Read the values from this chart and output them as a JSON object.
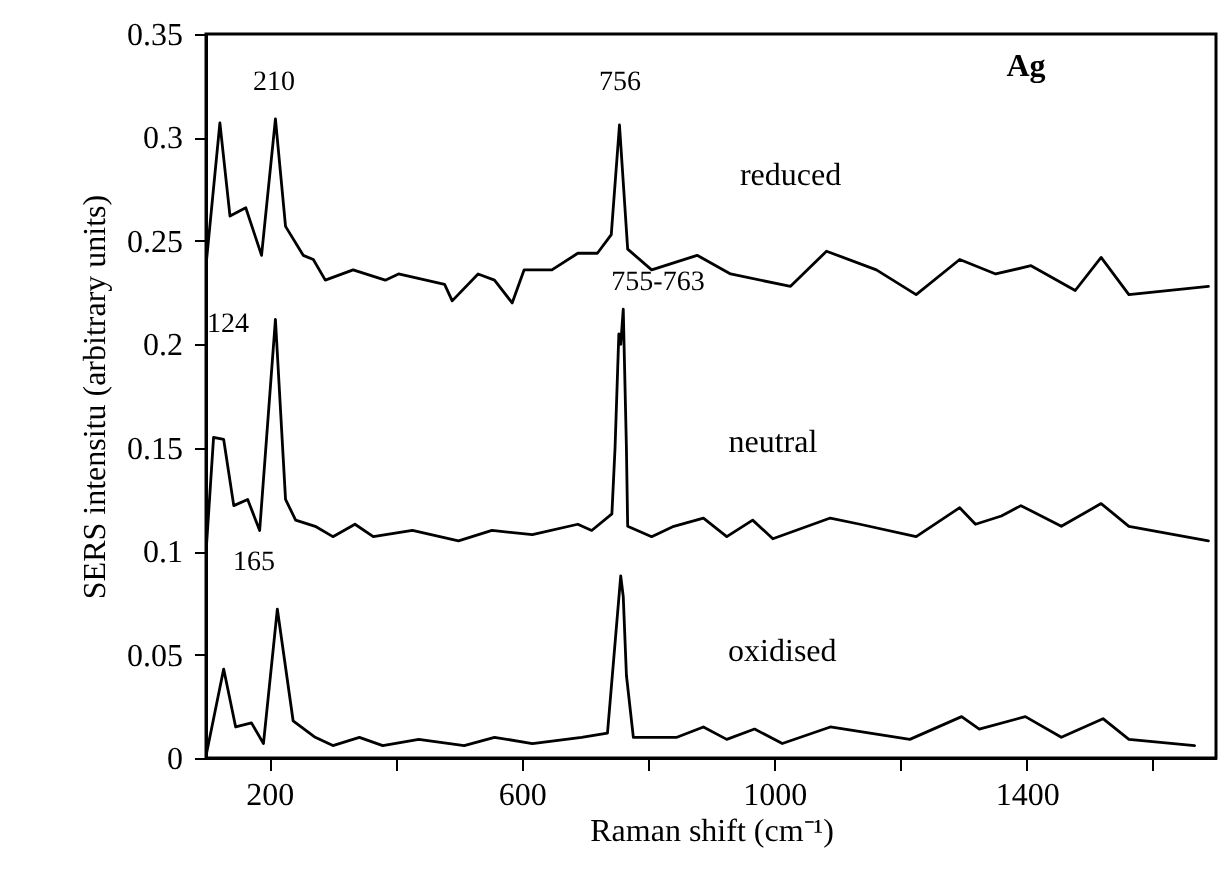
{
  "chart_data": {
    "type": "line",
    "xlabel": "Raman shift (cm⁻¹)",
    "ylabel": "SERS intensitu (arbitrary units)",
    "xlim": [
      100,
      1700
    ],
    "ylim": [
      0,
      0.35
    ],
    "xticks": [
      200,
      {
        "value": 400,
        "label": null
      },
      600,
      {
        "value": 800,
        "label": null
      },
      1000,
      {
        "value": 1200,
        "label": null
      },
      1400,
      {
        "value": 1600,
        "label": null
      }
    ],
    "yticks": [
      0,
      0.05,
      0.1,
      0.15,
      0.2,
      0.25,
      0.3,
      0.35
    ],
    "marker": "none",
    "line_style": "solid",
    "annotations": [
      "210",
      "756",
      "124",
      "755-763",
      "165",
      "Ag"
    ],
    "series": [
      {
        "name": "reduced",
        "color": "#000000",
        "x": [
          100,
          122,
          138,
          163,
          188,
          210,
          226,
          254,
          270,
          289,
          333,
          384,
          405,
          478,
          490,
          531,
          557,
          585,
          604,
          648,
          689,
          720,
          742,
          755,
          768,
          806,
          878,
          931,
          1026,
          1083,
          1162,
          1225,
          1294,
          1351,
          1407,
          1477,
          1518,
          1562,
          1688
        ],
        "values": [
          0.238,
          0.307,
          0.262,
          0.266,
          0.243,
          0.309,
          0.257,
          0.243,
          0.241,
          0.231,
          0.236,
          0.231,
          0.234,
          0.229,
          0.221,
          0.234,
          0.231,
          0.22,
          0.236,
          0.236,
          0.244,
          0.244,
          0.253,
          0.306,
          0.246,
          0.236,
          0.243,
          0.234,
          0.228,
          0.245,
          0.236,
          0.224,
          0.241,
          0.234,
          0.238,
          0.226,
          0.242,
          0.224,
          0.228
        ]
      },
      {
        "name": "neutral",
        "color": "#000000",
        "x": [
          100,
          112,
          128,
          144,
          166,
          185,
          210,
          226,
          242,
          273,
          301,
          336,
          365,
          427,
          500,
          553,
          617,
          689,
          711,
          743,
          748,
          754,
          757,
          761,
          766,
          768,
          806,
          841,
          888,
          925,
          966,
          998,
          1089,
          1136,
          1225,
          1294,
          1319,
          1360,
          1391,
          1455,
          1518,
          1562,
          1688
        ],
        "values": [
          0.099,
          0.155,
          0.154,
          0.122,
          0.125,
          0.11,
          0.212,
          0.125,
          0.115,
          0.112,
          0.107,
          0.113,
          0.107,
          0.11,
          0.105,
          0.11,
          0.108,
          0.113,
          0.11,
          0.118,
          0.15,
          0.205,
          0.2,
          0.217,
          0.15,
          0.112,
          0.107,
          0.112,
          0.116,
          0.107,
          0.115,
          0.106,
          0.116,
          0.113,
          0.107,
          0.121,
          0.113,
          0.117,
          0.122,
          0.112,
          0.123,
          0.112,
          0.105
        ]
      },
      {
        "name": "oxidised",
        "color": "#000000",
        "x": [
          100,
          128,
          147,
          172,
          191,
          213,
          238,
          273,
          301,
          343,
          380,
          437,
          509,
          557,
          617,
          695,
          736,
          752,
          757,
          761,
          766,
          777,
          846,
          888,
          925,
          969,
          1013,
          1089,
          1215,
          1297,
          1325,
          1398,
          1455,
          1521,
          1562,
          1666
        ],
        "values": [
          0.001,
          0.043,
          0.015,
          0.017,
          0.007,
          0.072,
          0.018,
          0.01,
          0.006,
          0.01,
          0.006,
          0.009,
          0.006,
          0.01,
          0.007,
          0.01,
          0.012,
          0.07,
          0.088,
          0.078,
          0.04,
          0.01,
          0.01,
          0.015,
          0.009,
          0.014,
          0.007,
          0.015,
          0.009,
          0.02,
          0.014,
          0.02,
          0.01,
          0.019,
          0.009,
          0.006
        ]
      }
    ]
  }
}
